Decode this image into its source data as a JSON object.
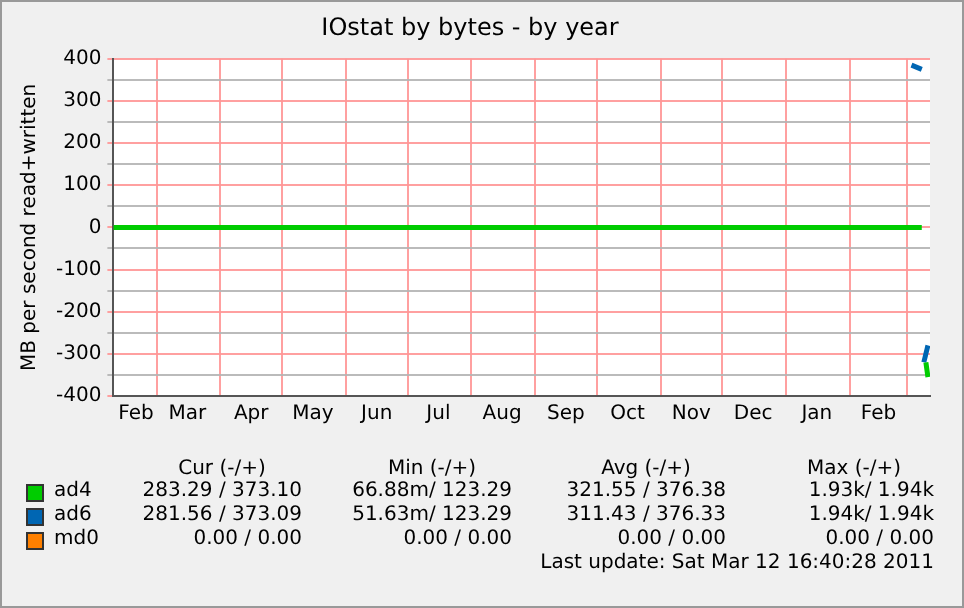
{
  "chart_data": {
    "type": "line",
    "title": "IOstat by bytes - by year",
    "ylabel": "MB per second read+written",
    "xlim": [
      "2010-02-08",
      "2011-03-12"
    ],
    "xticks": [
      {
        "value": "2010-03-01",
        "label": null
      },
      {
        "value": "2010-04-01",
        "label": null
      },
      {
        "value": "2010-05-01",
        "label": null
      },
      {
        "value": "2010-06-01",
        "label": null
      },
      {
        "value": "2010-07-01",
        "label": null
      },
      {
        "value": "2010-08-01",
        "label": null
      },
      {
        "value": "2010-09-01",
        "label": null
      },
      {
        "value": "2010-10-01",
        "label": null
      },
      {
        "value": "2010-11-01",
        "label": null
      },
      {
        "value": "2010-12-01",
        "label": null
      },
      {
        "value": "2011-01-01",
        "label": null
      },
      {
        "value": "2011-02-01",
        "label": null
      },
      {
        "value": "2011-03-01",
        "label": null
      },
      {
        "value": "2010-02-19",
        "label": "Feb"
      },
      {
        "value": "2010-03-16",
        "label": "Mar"
      },
      {
        "value": "2010-04-16",
        "label": "Apr"
      },
      {
        "value": "2010-05-16",
        "label": "May"
      },
      {
        "value": "2010-06-16",
        "label": "Jun"
      },
      {
        "value": "2010-07-16",
        "label": "Jul"
      },
      {
        "value": "2010-08-16",
        "label": "Aug"
      },
      {
        "value": "2010-09-16",
        "label": "Sep"
      },
      {
        "value": "2010-10-16",
        "label": "Oct"
      },
      {
        "value": "2010-11-16",
        "label": "Nov"
      },
      {
        "value": "2010-12-16",
        "label": "Dec"
      },
      {
        "value": "2011-01-16",
        "label": "Jan"
      },
      {
        "value": "2011-02-15",
        "label": "Feb"
      }
    ],
    "ylim": [
      -400,
      400
    ],
    "yticks": [
      -400,
      {
        "value": -350,
        "label": null
      },
      -300,
      {
        "value": -250,
        "label": null
      },
      -200,
      {
        "value": -150,
        "label": null
      },
      -100,
      {
        "value": -50,
        "label": null
      },
      0,
      {
        "value": 50,
        "label": null
      },
      100,
      {
        "value": 150,
        "label": null
      },
      200,
      {
        "value": 250,
        "label": null
      },
      300,
      {
        "value": 350,
        "label": null
      },
      400
    ],
    "grid": true,
    "legend": "bottom left",
    "marker": "none",
    "line_style": "solid",
    "series": [
      {
        "name": "ad4",
        "color": "#00cc00",
        "x": [
          "2010-02-08",
          "2011-03-08",
          "2011-03-09",
          "2011-03-10",
          "2011-03-11"
        ],
        "values": [
          0,
          0,
          null,
          -320,
          -355
        ]
      },
      {
        "name": "ad6",
        "color": "#0066b3",
        "x": [
          "2011-03-03",
          "2011-03-08"
        ],
        "values": [
          385,
          375
        ]
      },
      {
        "color": "#0066b3",
        "x": [
          "2011-03-09",
          "2011-03-11"
        ],
        "values": [
          -320,
          -280
        ]
      },
      {
        "name": "md0",
        "color": "#ff8000"
      }
    ],
    "annotations": [
      "Cur (-/+)",
      "Min (-/+)",
      "Avg (-/+)",
      "Max (-/+)",
      "283.29 / 373.10",
      "66.88m/ 123.29",
      "321.55 / 376.38",
      "1.93k/ 1.94k",
      "281.56 / 373.09",
      "51.63m/ 123.29",
      "311.43 / 376.33",
      "1.94k/ 1.94k",
      "0.00 / 0.00",
      "0.00 / 0.00",
      "0.00 / 0.00",
      "0.00 / 0.00",
      "Last update: Sat Mar 12 16:40:28 2011"
    ]
  }
}
